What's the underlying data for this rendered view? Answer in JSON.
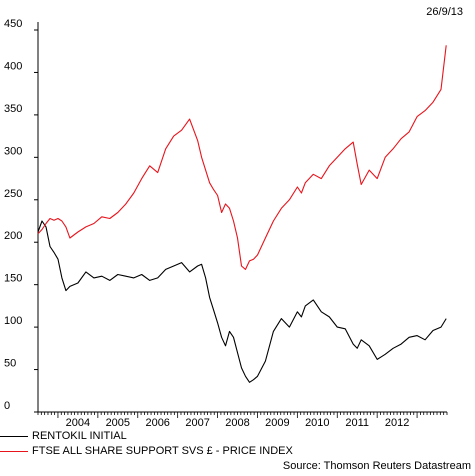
{
  "date_stamp": "26/9/13",
  "source": "Source: Thomson Reuters Datastream",
  "colors": {
    "series_1": "#000000",
    "series_2": "#e8141c",
    "axis": "#000000"
  },
  "chart_data": {
    "type": "line",
    "title": "",
    "xlabel": "",
    "ylabel": "",
    "xlim": [
      2003.5,
      2013.75
    ],
    "ylim": [
      0,
      450
    ],
    "yticks": [
      0,
      50,
      100,
      150,
      200,
      250,
      300,
      350,
      400,
      450
    ],
    "xtick_labels": [
      "2004",
      "2005",
      "2006",
      "2007",
      "2008",
      "2009",
      "2010",
      "2011",
      "2012"
    ],
    "grid": false,
    "legend_position": "bottom-left",
    "series": [
      {
        "name": "RENTOKIL INITIAL",
        "color": "#000000",
        "x": [
          2003.5,
          2003.6,
          2003.7,
          2003.8,
          2003.9,
          2004.0,
          2004.1,
          2004.2,
          2004.3,
          2004.5,
          2004.7,
          2004.9,
          2005.1,
          2005.3,
          2005.5,
          2005.7,
          2005.9,
          2006.1,
          2006.3,
          2006.5,
          2006.7,
          2006.9,
          2007.1,
          2007.3,
          2007.5,
          2007.6,
          2007.7,
          2007.8,
          2007.9,
          2008.0,
          2008.1,
          2008.2,
          2008.3,
          2008.4,
          2008.5,
          2008.6,
          2008.7,
          2008.8,
          2008.9,
          2009.0,
          2009.2,
          2009.4,
          2009.6,
          2009.8,
          2010.0,
          2010.1,
          2010.2,
          2010.4,
          2010.6,
          2010.8,
          2011.0,
          2011.2,
          2011.4,
          2011.5,
          2011.6,
          2011.8,
          2012.0,
          2012.2,
          2012.4,
          2012.6,
          2012.8,
          2013.0,
          2013.2,
          2013.4,
          2013.6,
          2013.73
        ],
        "values": [
          212,
          225,
          218,
          195,
          188,
          180,
          158,
          143,
          148,
          152,
          165,
          158,
          160,
          155,
          162,
          160,
          158,
          162,
          155,
          158,
          168,
          172,
          176,
          165,
          172,
          174,
          158,
          135,
          120,
          105,
          88,
          78,
          95,
          88,
          70,
          52,
          42,
          35,
          38,
          42,
          60,
          95,
          110,
          100,
          118,
          112,
          125,
          132,
          118,
          112,
          100,
          98,
          80,
          75,
          85,
          78,
          62,
          68,
          75,
          80,
          88,
          90,
          85,
          96,
          100,
          110
        ]
      },
      {
        "name": "FTSE ALL SHARE SUPPORT SVS £ - PRICE INDEX",
        "color": "#e8141c",
        "x": [
          2003.5,
          2003.6,
          2003.7,
          2003.8,
          2003.9,
          2004.0,
          2004.1,
          2004.2,
          2004.3,
          2004.5,
          2004.7,
          2004.9,
          2005.1,
          2005.3,
          2005.5,
          2005.7,
          2005.9,
          2006.1,
          2006.3,
          2006.5,
          2006.7,
          2006.9,
          2007.1,
          2007.3,
          2007.5,
          2007.6,
          2007.7,
          2007.8,
          2007.9,
          2008.0,
          2008.1,
          2008.2,
          2008.3,
          2008.4,
          2008.5,
          2008.6,
          2008.7,
          2008.8,
          2008.9,
          2009.0,
          2009.2,
          2009.4,
          2009.6,
          2009.8,
          2010.0,
          2010.1,
          2010.2,
          2010.4,
          2010.6,
          2010.8,
          2011.0,
          2011.2,
          2011.4,
          2011.5,
          2011.6,
          2011.8,
          2012.0,
          2012.2,
          2012.4,
          2012.6,
          2012.8,
          2013.0,
          2013.2,
          2013.4,
          2013.6,
          2013.73
        ],
        "values": [
          210,
          215,
          222,
          228,
          226,
          228,
          225,
          218,
          205,
          212,
          218,
          222,
          230,
          228,
          235,
          245,
          258,
          275,
          290,
          282,
          310,
          325,
          332,
          345,
          320,
          300,
          285,
          270,
          262,
          255,
          235,
          245,
          240,
          225,
          205,
          172,
          168,
          178,
          180,
          185,
          205,
          225,
          240,
          250,
          265,
          258,
          270,
          280,
          275,
          290,
          300,
          310,
          318,
          292,
          268,
          285,
          275,
          300,
          310,
          322,
          330,
          348,
          355,
          365,
          380,
          432
        ]
      }
    ]
  }
}
